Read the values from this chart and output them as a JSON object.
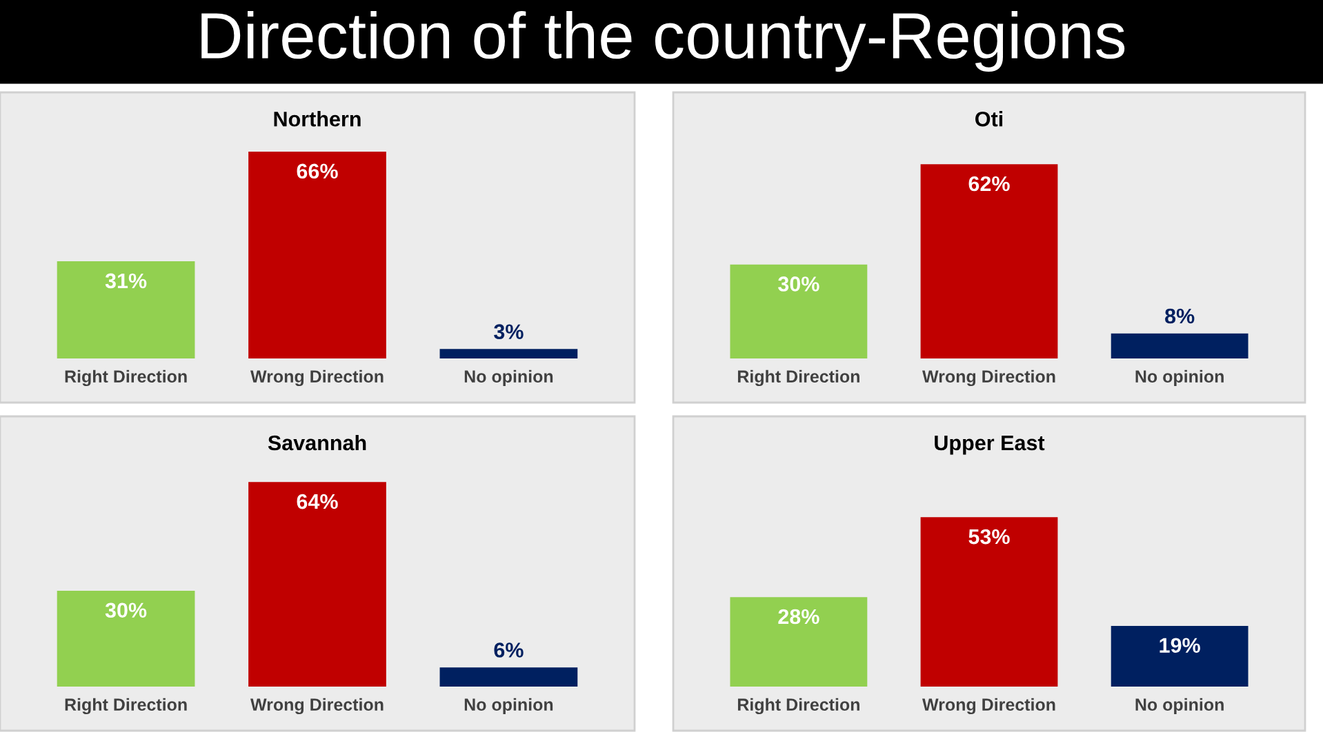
{
  "chart_data": [
    {
      "type": "bar",
      "title": "Northern",
      "annotations": [
        "Direction of the country-Regions"
      ],
      "categories": [
        "Right Direction",
        "Wrong Direction",
        "No opinion"
      ],
      "values": [
        31,
        66,
        3
      ],
      "colors": [
        "#92d050",
        "#c00000",
        "#002060"
      ],
      "value_labels": [
        "31%",
        "66%",
        "3%"
      ]
    },
    {
      "type": "bar",
      "title": "Oti",
      "categories": [
        "Right Direction",
        "Wrong Direction",
        "No opinion"
      ],
      "values": [
        30,
        62,
        8
      ],
      "colors": [
        "#92d050",
        "#c00000",
        "#002060"
      ],
      "value_labels": [
        "30%",
        "62%",
        "8%"
      ]
    },
    {
      "type": "bar",
      "title": "Savannah",
      "categories": [
        "Right Direction",
        "Wrong Direction",
        "No opinion"
      ],
      "values": [
        30,
        64,
        6
      ],
      "colors": [
        "#92d050",
        "#c00000",
        "#002060"
      ],
      "value_labels": [
        "30%",
        "64%",
        "6%"
      ]
    },
    {
      "type": "bar",
      "title": "Upper East",
      "categories": [
        "Right Direction",
        "Wrong Direction",
        "No opinion"
      ],
      "values": [
        28,
        53,
        19
      ],
      "colors": [
        "#92d050",
        "#c00000",
        "#002060"
      ],
      "value_labels": [
        "28%",
        "53%",
        "19%"
      ]
    }
  ]
}
